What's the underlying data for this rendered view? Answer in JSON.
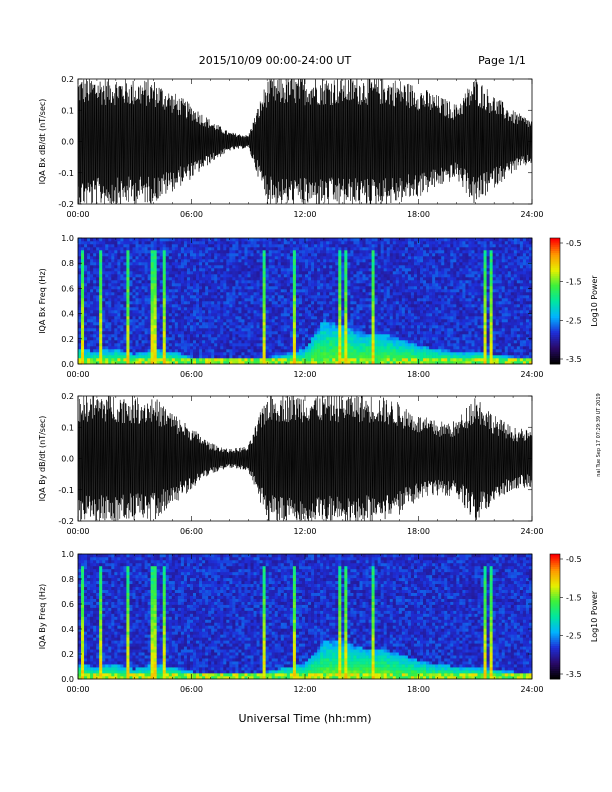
{
  "header": {
    "date_range": "2015/10/09   00:00-24:00 UT",
    "page": "Page 1/1"
  },
  "side_note": "nal Tue Sep 17 07:29:39 UT 2019",
  "x_axis": {
    "label": "Universal Time (hh:mm)",
    "ticks": [
      "00:00",
      "06:00",
      "12:00",
      "18:00",
      "24:00"
    ],
    "range_hours": [
      0,
      24
    ]
  },
  "colorbar": {
    "label": "Log10 Power",
    "ticks": [
      "-0.5",
      "-1.5",
      "-2.5",
      "-3.5"
    ],
    "range": [
      -3.5,
      -0.5
    ],
    "colors": [
      "#000000",
      "#2a0a6b",
      "#1e2fd9",
      "#00b4ff",
      "#00e6a0",
      "#3cf03c",
      "#e6f000",
      "#ff9a00",
      "#ff0000"
    ]
  },
  "chart_data": [
    {
      "type": "line",
      "panel": "bx-waveform",
      "ylabel": "IQA Bx dB/dt (nT/sec)",
      "ylim": [
        -0.2,
        0.2
      ],
      "yticks": [
        "0.2",
        "0.1",
        "0.0",
        "-0.1",
        "-0.2"
      ],
      "x_hours": [
        0,
        1,
        2,
        3,
        4,
        5,
        6,
        7,
        8,
        9,
        10,
        11,
        12,
        13,
        14,
        15,
        16,
        17,
        18,
        19,
        20,
        21,
        22,
        23,
        24
      ],
      "envelope_amplitude": [
        0.21,
        0.21,
        0.21,
        0.2,
        0.2,
        0.16,
        0.12,
        0.07,
        0.03,
        0.02,
        0.2,
        0.21,
        0.21,
        0.21,
        0.21,
        0.21,
        0.21,
        0.2,
        0.18,
        0.15,
        0.12,
        0.21,
        0.15,
        0.1,
        0.07
      ]
    },
    {
      "type": "heatmap",
      "panel": "bx-spectrogram",
      "ylabel": "IQA Bx Freq (Hz)",
      "ylim": [
        0,
        1.0
      ],
      "yticks": [
        "1.0",
        "0.8",
        "0.6",
        "0.4",
        "0.2",
        "0.0"
      ],
      "zlabel": "Log10 Power",
      "zlim": [
        -3.5,
        -0.5
      ],
      "activity_hours": [
        0,
        1,
        2,
        3,
        4,
        5,
        6,
        7,
        8,
        9,
        10,
        11,
        12,
        13,
        14,
        15,
        16,
        17,
        18,
        19,
        20,
        21,
        22,
        23,
        24
      ],
      "activity_peak_freq_hz": [
        0.12,
        0.1,
        0.12,
        0.08,
        0.12,
        0.1,
        0.06,
        0.03,
        0.02,
        0.02,
        0.05,
        0.08,
        0.12,
        0.35,
        0.3,
        0.25,
        0.25,
        0.2,
        0.15,
        0.12,
        0.1,
        0.1,
        0.08,
        0.06,
        0.05
      ],
      "vertical_bursts_hours": [
        0.2,
        1.2,
        2.7,
        3.9,
        4.1,
        4.6,
        9.9,
        11.4,
        13.8,
        14.1,
        15.6,
        21.5,
        21.8
      ]
    },
    {
      "type": "line",
      "panel": "by-waveform",
      "ylabel": "IQA By dB/dt (nT/sec)",
      "ylim": [
        -0.2,
        0.2
      ],
      "yticks": [
        "0.2",
        "0.1",
        "0.0",
        "-0.1",
        "-0.2"
      ],
      "x_hours": [
        0,
        1,
        2,
        3,
        4,
        5,
        6,
        7,
        8,
        9,
        10,
        11,
        12,
        13,
        14,
        15,
        16,
        17,
        18,
        19,
        20,
        21,
        22,
        23,
        24
      ],
      "envelope_amplitude": [
        0.21,
        0.21,
        0.21,
        0.2,
        0.2,
        0.15,
        0.1,
        0.05,
        0.03,
        0.04,
        0.21,
        0.21,
        0.21,
        0.21,
        0.21,
        0.21,
        0.2,
        0.18,
        0.14,
        0.12,
        0.12,
        0.21,
        0.14,
        0.1,
        0.09
      ]
    },
    {
      "type": "heatmap",
      "panel": "by-spectrogram",
      "ylabel": "IQA By Freq (Hz)",
      "ylim": [
        0,
        1.0
      ],
      "yticks": [
        "1.0",
        "0.8",
        "0.6",
        "0.4",
        "0.2",
        "0.0"
      ],
      "zlabel": "Log10 Power",
      "zlim": [
        -3.5,
        -0.5
      ],
      "activity_hours": [
        0,
        1,
        2,
        3,
        4,
        5,
        6,
        7,
        8,
        9,
        10,
        11,
        12,
        13,
        14,
        15,
        16,
        17,
        18,
        19,
        20,
        21,
        22,
        23,
        24
      ],
      "activity_peak_freq_hz": [
        0.12,
        0.1,
        0.12,
        0.08,
        0.12,
        0.1,
        0.06,
        0.04,
        0.03,
        0.03,
        0.06,
        0.1,
        0.12,
        0.3,
        0.3,
        0.25,
        0.25,
        0.2,
        0.15,
        0.12,
        0.1,
        0.1,
        0.08,
        0.06,
        0.05
      ],
      "vertical_bursts_hours": [
        0.2,
        1.2,
        2.7,
        3.9,
        4.1,
        4.6,
        9.9,
        11.4,
        13.8,
        14.1,
        15.6,
        21.5,
        21.8
      ]
    }
  ]
}
